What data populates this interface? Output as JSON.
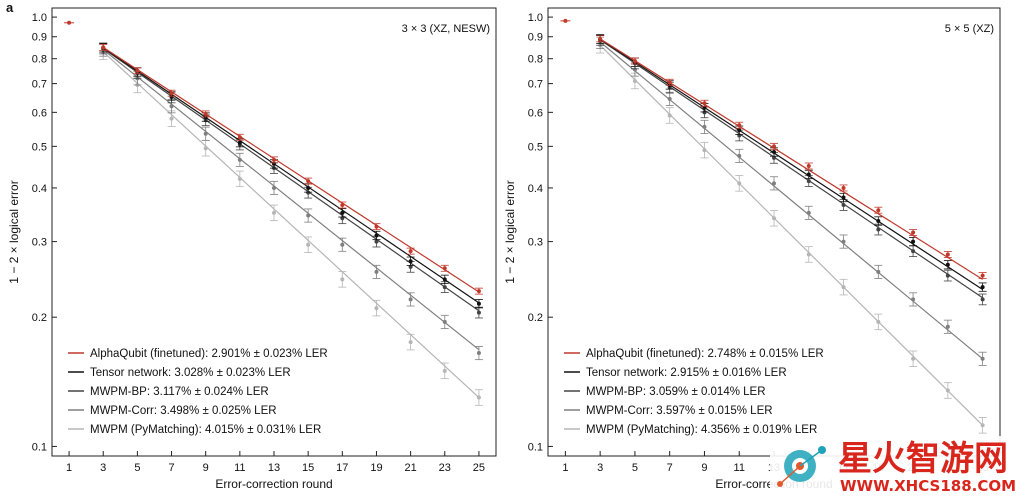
{
  "figure": {
    "panel_label": "a",
    "watermark": {
      "title": "星火智游网",
      "url": "WWW.XHCS188.COM"
    }
  },
  "colors": {
    "alphaqubit": "#c0392b",
    "tensor": "#111111",
    "mwpm_bp": "#444444",
    "mwpm_corr": "#7f7f7f",
    "mwpm": "#b5b5b5"
  },
  "chart_data": [
    {
      "type": "line",
      "annotation": "3 × 3 (XZ, NESW)",
      "xlabel": "Error-correction round",
      "ylabel": "1 − 2 × logical error",
      "yscale": "log",
      "xlim": [
        0,
        26
      ],
      "ylim": [
        0.095,
        1.05
      ],
      "xticks": [
        1,
        3,
        5,
        7,
        9,
        11,
        13,
        15,
        17,
        19,
        21,
        23,
        25
      ],
      "yticks": [
        0.1,
        0.2,
        0.3,
        0.4,
        0.5,
        0.6,
        0.7,
        0.8,
        0.9,
        1.0
      ],
      "ytick_labels": [
        "0.1",
        "0.2",
        "0.3",
        "0.4",
        "0.5",
        "0.6",
        "0.7",
        "0.8",
        "0.9",
        "1.0"
      ],
      "legend_position": "bottom-left",
      "x": [
        3,
        5,
        7,
        9,
        11,
        13,
        15,
        17,
        19,
        21,
        23,
        25
      ],
      "first_point": {
        "x": 1,
        "y": 0.97
      },
      "series": [
        {
          "name": "AlphaQubit (finetuned): 2.901% ± 0.023% LER",
          "key": "alphaqubit",
          "values": [
            0.85,
            0.75,
            0.665,
            0.595,
            0.525,
            0.465,
            0.415,
            0.365,
            0.325,
            0.285,
            0.26,
            0.23
          ],
          "fit": [
            0.85,
            0.229
          ]
        },
        {
          "name": "Tensor network: 3.028% ± 0.023% LER",
          "key": "tensor",
          "values": [
            0.848,
            0.745,
            0.655,
            0.585,
            0.51,
            0.455,
            0.4,
            0.35,
            0.31,
            0.27,
            0.245,
            0.215
          ],
          "fit": [
            0.848,
            0.216
          ]
        },
        {
          "name": "MWPM-BP: 3.117% ± 0.024% LER",
          "key": "mwpm_bp",
          "values": [
            0.845,
            0.74,
            0.65,
            0.575,
            0.505,
            0.445,
            0.39,
            0.34,
            0.3,
            0.262,
            0.235,
            0.205
          ],
          "fit": [
            0.845,
            0.207
          ]
        },
        {
          "name": "MWPM-Corr: 3.498% ± 0.025% LER",
          "key": "mwpm_corr",
          "values": [
            0.84,
            0.72,
            0.62,
            0.535,
            0.465,
            0.4,
            0.345,
            0.295,
            0.255,
            0.22,
            0.195,
            0.165
          ],
          "fit": [
            0.84,
            0.168
          ]
        },
        {
          "name": "MWPM (PyMatching): 4.015% ± 0.031% LER",
          "key": "mwpm",
          "values": [
            0.83,
            0.695,
            0.58,
            0.495,
            0.42,
            0.35,
            0.295,
            0.245,
            0.21,
            0.175,
            0.15,
            0.13
          ],
          "fit": [
            0.83,
            0.13
          ]
        }
      ]
    },
    {
      "type": "line",
      "annotation": "5 × 5 (XZ)",
      "xlabel": "Error-correction round",
      "ylabel": "1 − 2 × logical error",
      "yscale": "log",
      "xlim": [
        0,
        26
      ],
      "ylim": [
        0.095,
        1.05
      ],
      "xticks": [
        1,
        3,
        5,
        7,
        9,
        11,
        13,
        15,
        17,
        19,
        21,
        23,
        25
      ],
      "yticks": [
        0.1,
        0.2,
        0.3,
        0.4,
        0.5,
        0.6,
        0.7,
        0.8,
        0.9,
        1.0
      ],
      "ytick_labels": [
        "0.1",
        "0.2",
        "0.3",
        "0.4",
        "0.5",
        "0.6",
        "0.7",
        "0.8",
        "0.9",
        "1.0"
      ],
      "legend_position": "bottom-left",
      "x": [
        3,
        5,
        7,
        9,
        11,
        13,
        15,
        17,
        19,
        21,
        23,
        25
      ],
      "first_point": {
        "x": 1,
        "y": 0.98
      },
      "series": [
        {
          "name": "AlphaQubit (finetuned): 2.748% ± 0.015% LER",
          "key": "alphaqubit",
          "values": [
            0.89,
            0.79,
            0.705,
            0.63,
            0.56,
            0.5,
            0.45,
            0.4,
            0.355,
            0.315,
            0.28,
            0.25
          ],
          "fit": [
            0.89,
            0.245
          ]
        },
        {
          "name": "Tensor network: 2.915% ± 0.016% LER",
          "key": "tensor",
          "values": [
            0.888,
            0.785,
            0.695,
            0.615,
            0.545,
            0.485,
            0.43,
            0.38,
            0.335,
            0.3,
            0.265,
            0.235
          ],
          "fit": [
            0.888,
            0.232
          ]
        },
        {
          "name": "MWPM-BP: 3.059% ± 0.014% LER",
          "key": "mwpm_bp",
          "values": [
            0.885,
            0.78,
            0.685,
            0.6,
            0.53,
            0.47,
            0.415,
            0.365,
            0.32,
            0.285,
            0.25,
            0.22
          ],
          "fit": [
            0.885,
            0.222
          ]
        },
        {
          "name": "MWPM-Corr: 3.597% ± 0.015% LER",
          "key": "mwpm_corr",
          "values": [
            0.875,
            0.755,
            0.645,
            0.555,
            0.475,
            0.41,
            0.35,
            0.3,
            0.255,
            0.22,
            0.19,
            0.16
          ],
          "fit": [
            0.875,
            0.16
          ]
        },
        {
          "name": "MWPM (PyMatching): 4.356% ± 0.019% LER",
          "key": "mwpm",
          "values": [
            0.86,
            0.71,
            0.59,
            0.49,
            0.41,
            0.34,
            0.28,
            0.235,
            0.195,
            0.16,
            0.135,
            0.112
          ],
          "fit": [
            0.86,
            0.112
          ]
        }
      ]
    }
  ]
}
